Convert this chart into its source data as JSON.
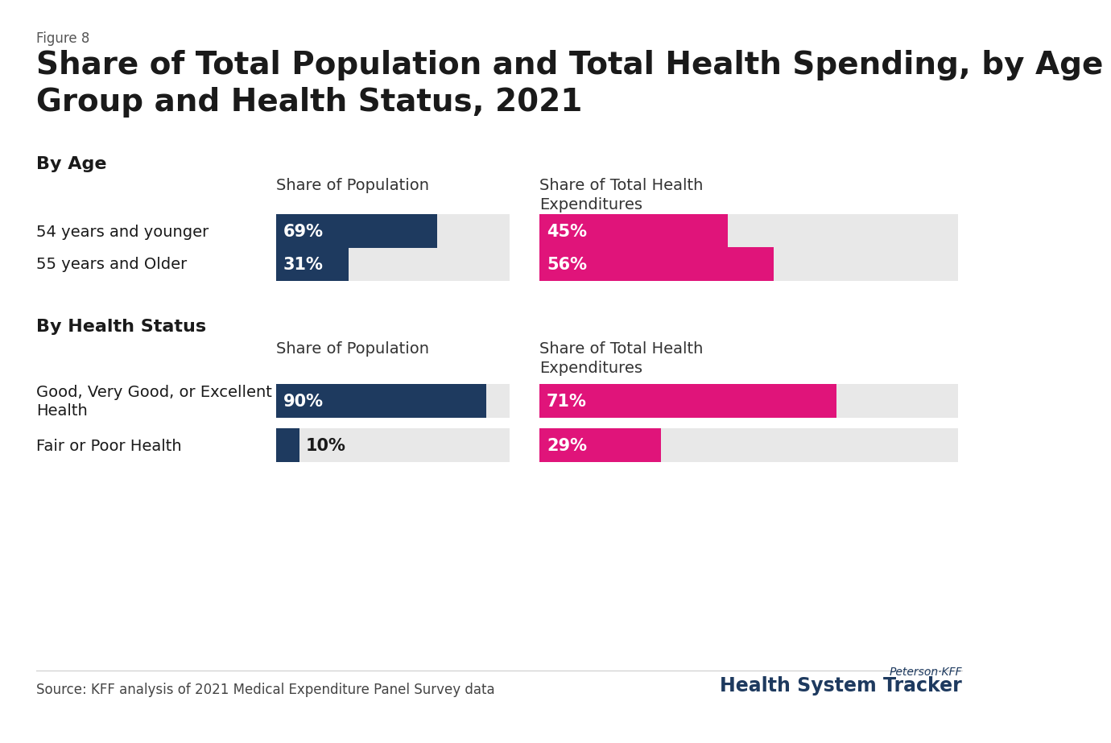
{
  "figure_label": "Figure 8",
  "title": "Share of Total Population and Total Health Spending, by Age\nGroup and Health Status, 2021",
  "section1_label": "By Age",
  "section2_label": "By Health Status",
  "col_header_pop": "Share of Population",
  "col_header_exp": "Share of Total Health\nExpenditures",
  "age_rows": [
    {
      "label": "54 years and younger",
      "pop": 69,
      "exp": 45
    },
    {
      "label": "55 years and Older",
      "pop": 31,
      "exp": 56
    }
  ],
  "health_rows": [
    {
      "label": "Good, Very Good, or Excellent\nHealth",
      "pop": 90,
      "exp": 71
    },
    {
      "label": "Fair or Poor Health",
      "pop": 10,
      "exp": 29
    }
  ],
  "bar_color_pop": "#1e3a5f",
  "bar_color_exp": "#e0147a",
  "bar_bg_color": "#e8e8e8",
  "source_text": "Source: KFF analysis of 2021 Medical Expenditure Panel Survey data",
  "logo_line1": "Peterson·KFF",
  "logo_line2": "Health System Tracker",
  "background_color": "#ffffff",
  "text_color": "#1a1a1a",
  "label_font_size": 14,
  "header_font_size": 14,
  "section_font_size": 16,
  "title_font_size": 28,
  "figure_label_font_size": 12,
  "source_font_size": 12
}
